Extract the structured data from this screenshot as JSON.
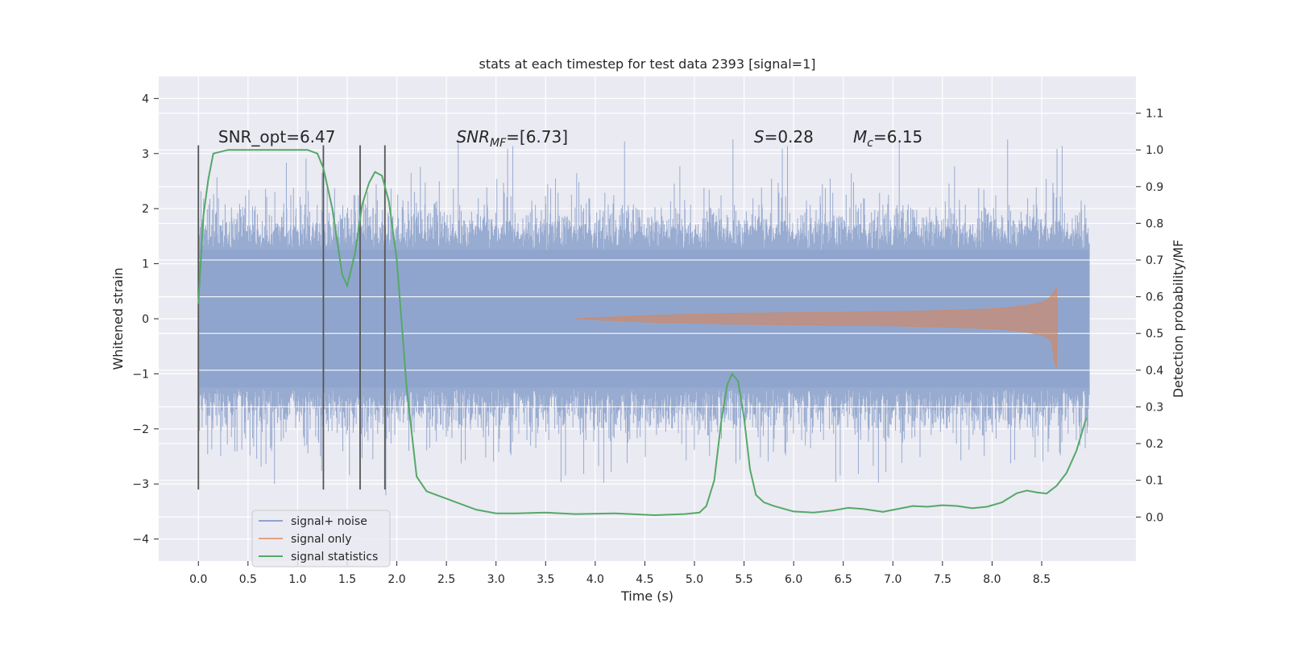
{
  "chart_data": {
    "type": "line",
    "title": "stats at each timestep for test data 2393 [signal=1]",
    "xlabel": "Time (s)",
    "ylabel": "Whitened strain",
    "y2label": "Detection probability/MF",
    "xlim": [
      -0.4,
      9.45
    ],
    "ylim": [
      -4.4,
      4.4
    ],
    "y2lim": [
      -0.12,
      1.2
    ],
    "x_ticks": [
      0.0,
      0.5,
      1.0,
      1.5,
      2.0,
      2.5,
      3.0,
      3.5,
      4.0,
      4.5,
      5.0,
      5.5,
      6.0,
      6.5,
      7.0,
      7.5,
      8.0,
      8.5
    ],
    "x_tick_labels": [
      "0.0",
      "0.5",
      "1.0",
      "1.5",
      "2.0",
      "2.5",
      "3.0",
      "3.5",
      "4.0",
      "4.5",
      "5.0",
      "5.5",
      "6.0",
      "6.5",
      "7.0",
      "7.5",
      "8.0",
      "8.5"
    ],
    "y_ticks": [
      4,
      3,
      2,
      1,
      0,
      -1,
      -2,
      -3,
      -4
    ],
    "y_tick_labels": [
      "4",
      "3",
      "2",
      "1",
      "0",
      "−1",
      "−2",
      "−3",
      "−4"
    ],
    "y2_ticks": [
      1.1,
      1.0,
      0.9,
      0.8,
      0.7,
      0.6,
      0.5,
      0.4,
      0.3,
      0.2,
      0.1,
      0.0
    ],
    "y2_tick_labels": [
      "1.1",
      "1.0",
      "0.9",
      "0.8",
      "0.7",
      "0.6",
      "0.5",
      "0.4",
      "0.3",
      "0.2",
      "0.1",
      "0.0"
    ],
    "grid": true,
    "legend_position": "lower-left",
    "legend": [
      {
        "label": "signal+ noise",
        "color": "#8fa4cc"
      },
      {
        "label": "signal only",
        "color": "#dd8452"
      },
      {
        "label": "signal statistics",
        "color": "#55a868"
      }
    ],
    "annotations": [
      {
        "id": "snr-opt",
        "text": "SNR_opt=6.47",
        "x": 0.2,
        "y": 3.2
      },
      {
        "id": "snr-mf",
        "main": "SNR",
        "sub": "MF",
        "rest": "=[6.73]",
        "x": 2.6,
        "y": 3.2
      },
      {
        "id": "s-value",
        "main": "S",
        "rest": "=0.28",
        "x": 5.6,
        "y": 3.2
      },
      {
        "id": "mc-value",
        "main": "M",
        "sub": "c",
        "rest": "=6.15",
        "x": 6.6,
        "y": 3.2
      }
    ],
    "vertical_lines": {
      "x": [
        0.0,
        1.26,
        1.63,
        1.88
      ],
      "ymin": -3.1,
      "ymax": 3.15
    },
    "series": [
      {
        "name": "signal+ noise",
        "description_range": [
          0.0,
          8.98
        ],
        "envelope": {
          "core": 1.25,
          "typical_peak": 2.4,
          "max": 4.0,
          "min": -4.0
        }
      },
      {
        "name": "signal only",
        "x": [
          3.8,
          4.5,
          5.0,
          5.5,
          6.0,
          6.5,
          7.0,
          7.5,
          8.0,
          8.2,
          8.4,
          8.5,
          8.55,
          8.6,
          8.63,
          8.65,
          8.66
        ],
        "amplitude": [
          0.0,
          0.06,
          0.08,
          0.1,
          0.11,
          0.12,
          0.13,
          0.15,
          0.18,
          0.21,
          0.26,
          0.3,
          0.34,
          0.42,
          0.5,
          0.55,
          0.0
        ]
      },
      {
        "name": "signal statistics",
        "x": [
          0.0,
          0.05,
          0.1,
          0.15,
          0.3,
          0.5,
          0.8,
          1.0,
          1.1,
          1.2,
          1.26,
          1.35,
          1.45,
          1.5,
          1.58,
          1.65,
          1.72,
          1.78,
          1.85,
          1.92,
          2.0,
          2.1,
          2.2,
          2.3,
          2.4,
          2.5,
          2.6,
          2.8,
          3.0,
          3.2,
          3.5,
          3.8,
          4.2,
          4.6,
          4.9,
          5.05,
          5.12,
          5.2,
          5.27,
          5.33,
          5.38,
          5.44,
          5.5,
          5.56,
          5.62,
          5.7,
          5.8,
          6.0,
          6.2,
          6.4,
          6.55,
          6.7,
          6.9,
          7.05,
          7.2,
          7.35,
          7.5,
          7.65,
          7.8,
          7.95,
          8.1,
          8.25,
          8.35,
          8.45,
          8.55,
          8.65,
          8.75,
          8.85,
          8.95
        ],
        "y": [
          0.58,
          0.82,
          0.92,
          0.99,
          1.0,
          1.0,
          1.0,
          1.0,
          1.0,
          0.99,
          0.95,
          0.84,
          0.66,
          0.63,
          0.72,
          0.85,
          0.91,
          0.94,
          0.93,
          0.86,
          0.7,
          0.35,
          0.11,
          0.07,
          0.06,
          0.05,
          0.04,
          0.02,
          0.01,
          0.01,
          0.012,
          0.008,
          0.01,
          0.005,
          0.008,
          0.012,
          0.03,
          0.1,
          0.26,
          0.36,
          0.39,
          0.37,
          0.27,
          0.13,
          0.06,
          0.04,
          0.03,
          0.015,
          0.012,
          0.018,
          0.025,
          0.022,
          0.014,
          0.022,
          0.03,
          0.028,
          0.032,
          0.03,
          0.024,
          0.028,
          0.04,
          0.065,
          0.072,
          0.067,
          0.064,
          0.085,
          0.12,
          0.18,
          0.27
        ]
      }
    ]
  }
}
